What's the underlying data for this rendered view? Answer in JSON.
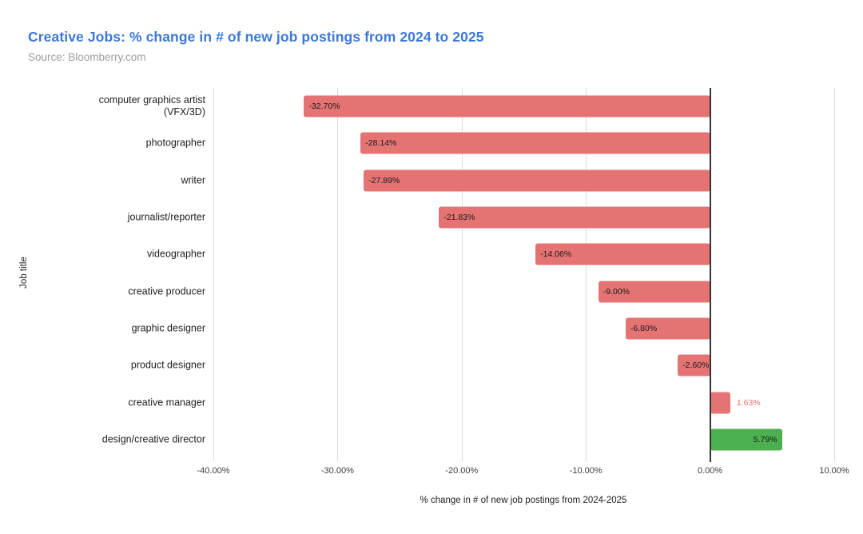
{
  "header": {
    "title": "Creative Jobs: % change in # of new job postings from 2024 to 2025",
    "subtitle": "Source: Bloomberry.com"
  },
  "colors": {
    "title": "#3c78d8",
    "subtitle": "#9e9e9e",
    "negative_bar": "#e57373",
    "positive_highlight_bar": "#4caf50",
    "grid": "#dcdcdc",
    "zero_line": "#333333"
  },
  "chart_data": {
    "type": "bar",
    "orientation": "horizontal",
    "title": "Creative Jobs: % change in # of new job postings from 2024 to 2025",
    "subtitle": "Source: Bloomberry.com",
    "xlabel": "% change in # of new job postings from 2024-2025",
    "ylabel": "Job title",
    "xlim": [
      -40,
      10
    ],
    "x_tick_values": [
      -40,
      -30,
      -20,
      -10,
      0,
      10
    ],
    "x_tick_labels": [
      "-40.00%",
      "-30.00%",
      "-20.00%",
      "-10.00%",
      "0.00%",
      "10.00%"
    ],
    "grid": "vertical-only",
    "legend": "none",
    "categories": [
      "computer graphics artist (VFX/3D)",
      "photographer",
      "writer",
      "journalist/reporter",
      "videographer",
      "creative producer",
      "graphic designer",
      "product designer",
      "creative manager",
      "design/creative director"
    ],
    "values": [
      -32.7,
      -28.14,
      -27.89,
      -21.83,
      -14.06,
      -9.0,
      -6.8,
      -2.6,
      1.63,
      5.79
    ],
    "points": [
      {
        "category": "computer graphics artist (VFX/3D)",
        "value": -32.7,
        "label": "-32.70%",
        "color": "#e57373"
      },
      {
        "category": "photographer",
        "value": -28.14,
        "label": "-28.14%",
        "color": "#e57373"
      },
      {
        "category": "writer",
        "value": -27.89,
        "label": "-27.89%",
        "color": "#e57373"
      },
      {
        "category": "journalist/reporter",
        "value": -21.83,
        "label": "-21.83%",
        "color": "#e57373"
      },
      {
        "category": "videographer",
        "value": -14.06,
        "label": "-14.06%",
        "color": "#e57373"
      },
      {
        "category": "creative producer",
        "value": -9.0,
        "label": "-9.00%",
        "color": "#e57373"
      },
      {
        "category": "graphic designer",
        "value": -6.8,
        "label": "-6.80%",
        "color": "#e57373"
      },
      {
        "category": "product designer",
        "value": -2.6,
        "label": "-2.60%",
        "color": "#e57373"
      },
      {
        "category": "creative manager",
        "value": 1.63,
        "label": "1.63%",
        "color": "#e57373"
      },
      {
        "category": "design/creative director",
        "value": 5.79,
        "label": "5.79%",
        "color": "#4caf50"
      }
    ]
  }
}
